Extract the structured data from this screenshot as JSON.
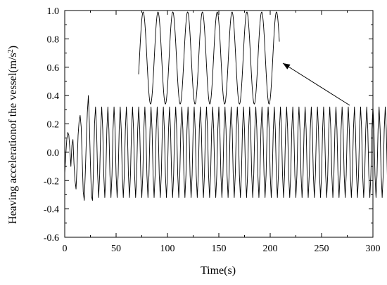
{
  "chart_data": {
    "type": "line",
    "xlabel": "Time(s)",
    "ylabel_main": "Heaving accelerationof the vessel(m/s",
    "ylabel_sup": "2",
    "ylabel_close": ")",
    "xlim": [
      0,
      300
    ],
    "ylim": [
      -0.6,
      1.0
    ],
    "xticks": [
      0,
      50,
      100,
      150,
      200,
      250,
      300
    ],
    "yticks": [
      -0.6,
      -0.4,
      -0.2,
      0.0,
      0.2,
      0.4,
      0.6,
      0.8,
      1.0
    ],
    "x_tick_labels": [
      "0",
      "50",
      "100",
      "150",
      "200",
      "250",
      "300"
    ],
    "y_tick_labels": [
      "-0.6",
      "-0.4",
      "-0.2",
      "0.0",
      "0.2",
      "0.4",
      "0.6",
      "0.8",
      "1.0"
    ],
    "x_minor_step": 25,
    "y_minor_step": 0.1,
    "grid": false,
    "line_color": "#000000",
    "series": [
      {
        "sample_interval": 1,
        "values": [
          -0.15,
          -0.02,
          0.09,
          0.14,
          0.12,
          0.02,
          -0.1,
          0.05,
          0.09,
          -0.08,
          -0.2,
          -0.26,
          -0.1,
          0.12,
          0.22,
          0.26,
          0.18,
          -0.05,
          -0.28,
          -0.34,
          -0.15,
          0.08,
          0.28,
          0.4,
          0.2,
          -0.08,
          -0.31,
          -0.34,
          -0.12,
          0.2,
          0.32,
          0.16,
          -0.15,
          -0.32,
          -0.16,
          0.16,
          0.32,
          0.16,
          -0.16,
          -0.32,
          -0.16,
          0.16,
          0.32,
          0.16,
          -0.16,
          -0.32,
          -0.16,
          0.16,
          0.32,
          0.16,
          -0.16,
          -0.32,
          -0.16,
          0.16,
          0.32,
          0.16,
          -0.16,
          -0.32,
          -0.16,
          0.16,
          0.32,
          0.16,
          -0.16,
          -0.32,
          -0.16,
          0.16,
          0.32,
          0.16,
          -0.16,
          -0.32,
          -0.16,
          0.16,
          0.32,
          0.16,
          -0.16,
          -0.32,
          -0.16,
          0.16,
          0.32,
          0.16,
          -0.16,
          -0.32,
          -0.16,
          0.16,
          0.32,
          0.16,
          -0.16,
          -0.32,
          -0.16,
          0.16,
          0.32,
          0.16,
          -0.16,
          -0.32,
          -0.16,
          0.16,
          0.32,
          0.16,
          -0.16,
          -0.32,
          -0.16,
          0.16,
          0.32,
          0.16,
          -0.16,
          -0.32,
          -0.16,
          0.16,
          0.32,
          0.16,
          -0.16,
          -0.32,
          -0.16,
          0.16,
          0.32,
          0.16,
          -0.16,
          -0.32,
          -0.16,
          0.16,
          0.32,
          0.16,
          -0.16,
          -0.32,
          -0.16,
          0.16,
          0.32,
          0.16,
          -0.16,
          -0.32,
          -0.16,
          0.16,
          0.32,
          0.16,
          -0.16,
          -0.32,
          -0.16,
          0.16,
          0.32,
          0.16,
          -0.16,
          -0.32,
          -0.16,
          0.16,
          0.32,
          0.16,
          -0.16,
          -0.32,
          -0.16,
          0.16,
          0.32,
          0.16,
          -0.16,
          -0.32,
          -0.16,
          0.16,
          0.32,
          0.16,
          -0.16,
          -0.32,
          -0.16,
          0.16,
          0.32,
          0.16,
          -0.16,
          -0.32,
          -0.16,
          0.16,
          0.32,
          0.16,
          -0.16,
          -0.32,
          -0.16,
          0.16,
          0.32,
          0.16,
          -0.16,
          -0.32,
          -0.16,
          0.16,
          0.32,
          0.16,
          -0.16,
          -0.32,
          -0.16,
          0.16,
          0.32,
          0.16,
          -0.16,
          -0.32,
          -0.16,
          0.16,
          0.32,
          0.16,
          -0.16,
          -0.32,
          -0.16,
          0.16,
          0.32,
          0.16,
          -0.16,
          -0.32,
          -0.16,
          0.16,
          0.32,
          0.16,
          -0.16,
          -0.32,
          -0.16,
          0.16,
          0.32,
          0.16,
          -0.16,
          -0.32,
          -0.16,
          0.16,
          0.32,
          0.16,
          -0.16,
          -0.32,
          -0.16,
          0.16,
          0.32,
          0.16,
          -0.16,
          -0.32,
          -0.16,
          0.16,
          0.32,
          0.16,
          -0.16,
          -0.32,
          -0.16,
          0.16,
          0.32,
          0.16,
          -0.16,
          -0.32,
          -0.16,
          0.16,
          0.32,
          0.16,
          -0.16,
          -0.32,
          -0.16,
          0.16,
          0.32,
          0.16,
          -0.16,
          -0.32,
          -0.16,
          0.16,
          0.32,
          0.16,
          -0.16,
          -0.32,
          -0.16,
          0.16,
          0.32,
          0.16,
          -0.16,
          -0.32,
          -0.16,
          0.16,
          0.32,
          0.16,
          -0.16,
          -0.32,
          -0.16,
          0.16,
          0.32,
          0.16,
          -0.16,
          -0.32,
          -0.16,
          0.16,
          0.32,
          0.16,
          -0.16,
          -0.32,
          -0.16,
          0.16,
          0.32,
          0.16,
          -0.16,
          -0.32,
          -0.16,
          0.16,
          0.32,
          0.16,
          -0.16,
          -0.32,
          -0.16,
          0.16,
          0.32,
          0.16,
          -0.16,
          -0.32,
          -0.16,
          0.16,
          0.32,
          0.16,
          -0.16,
          -0.32,
          -0.16,
          0.16,
          0.32,
          0.16,
          -0.16,
          -0.32,
          -0.16,
          0.16,
          0.32,
          0.16,
          -0.16,
          -0.32,
          -0.16,
          0.16,
          0.32,
          0.16,
          -0.16,
          -0.32,
          -0.16,
          0.16,
          0.32,
          0.2,
          -0.1,
          -0.39
        ]
      }
    ],
    "inset": {
      "description_hidden": true,
      "peak_value": 0.99,
      "trough_value": 0.34,
      "cycles": 9.5,
      "initial_value": 0.55
    }
  }
}
